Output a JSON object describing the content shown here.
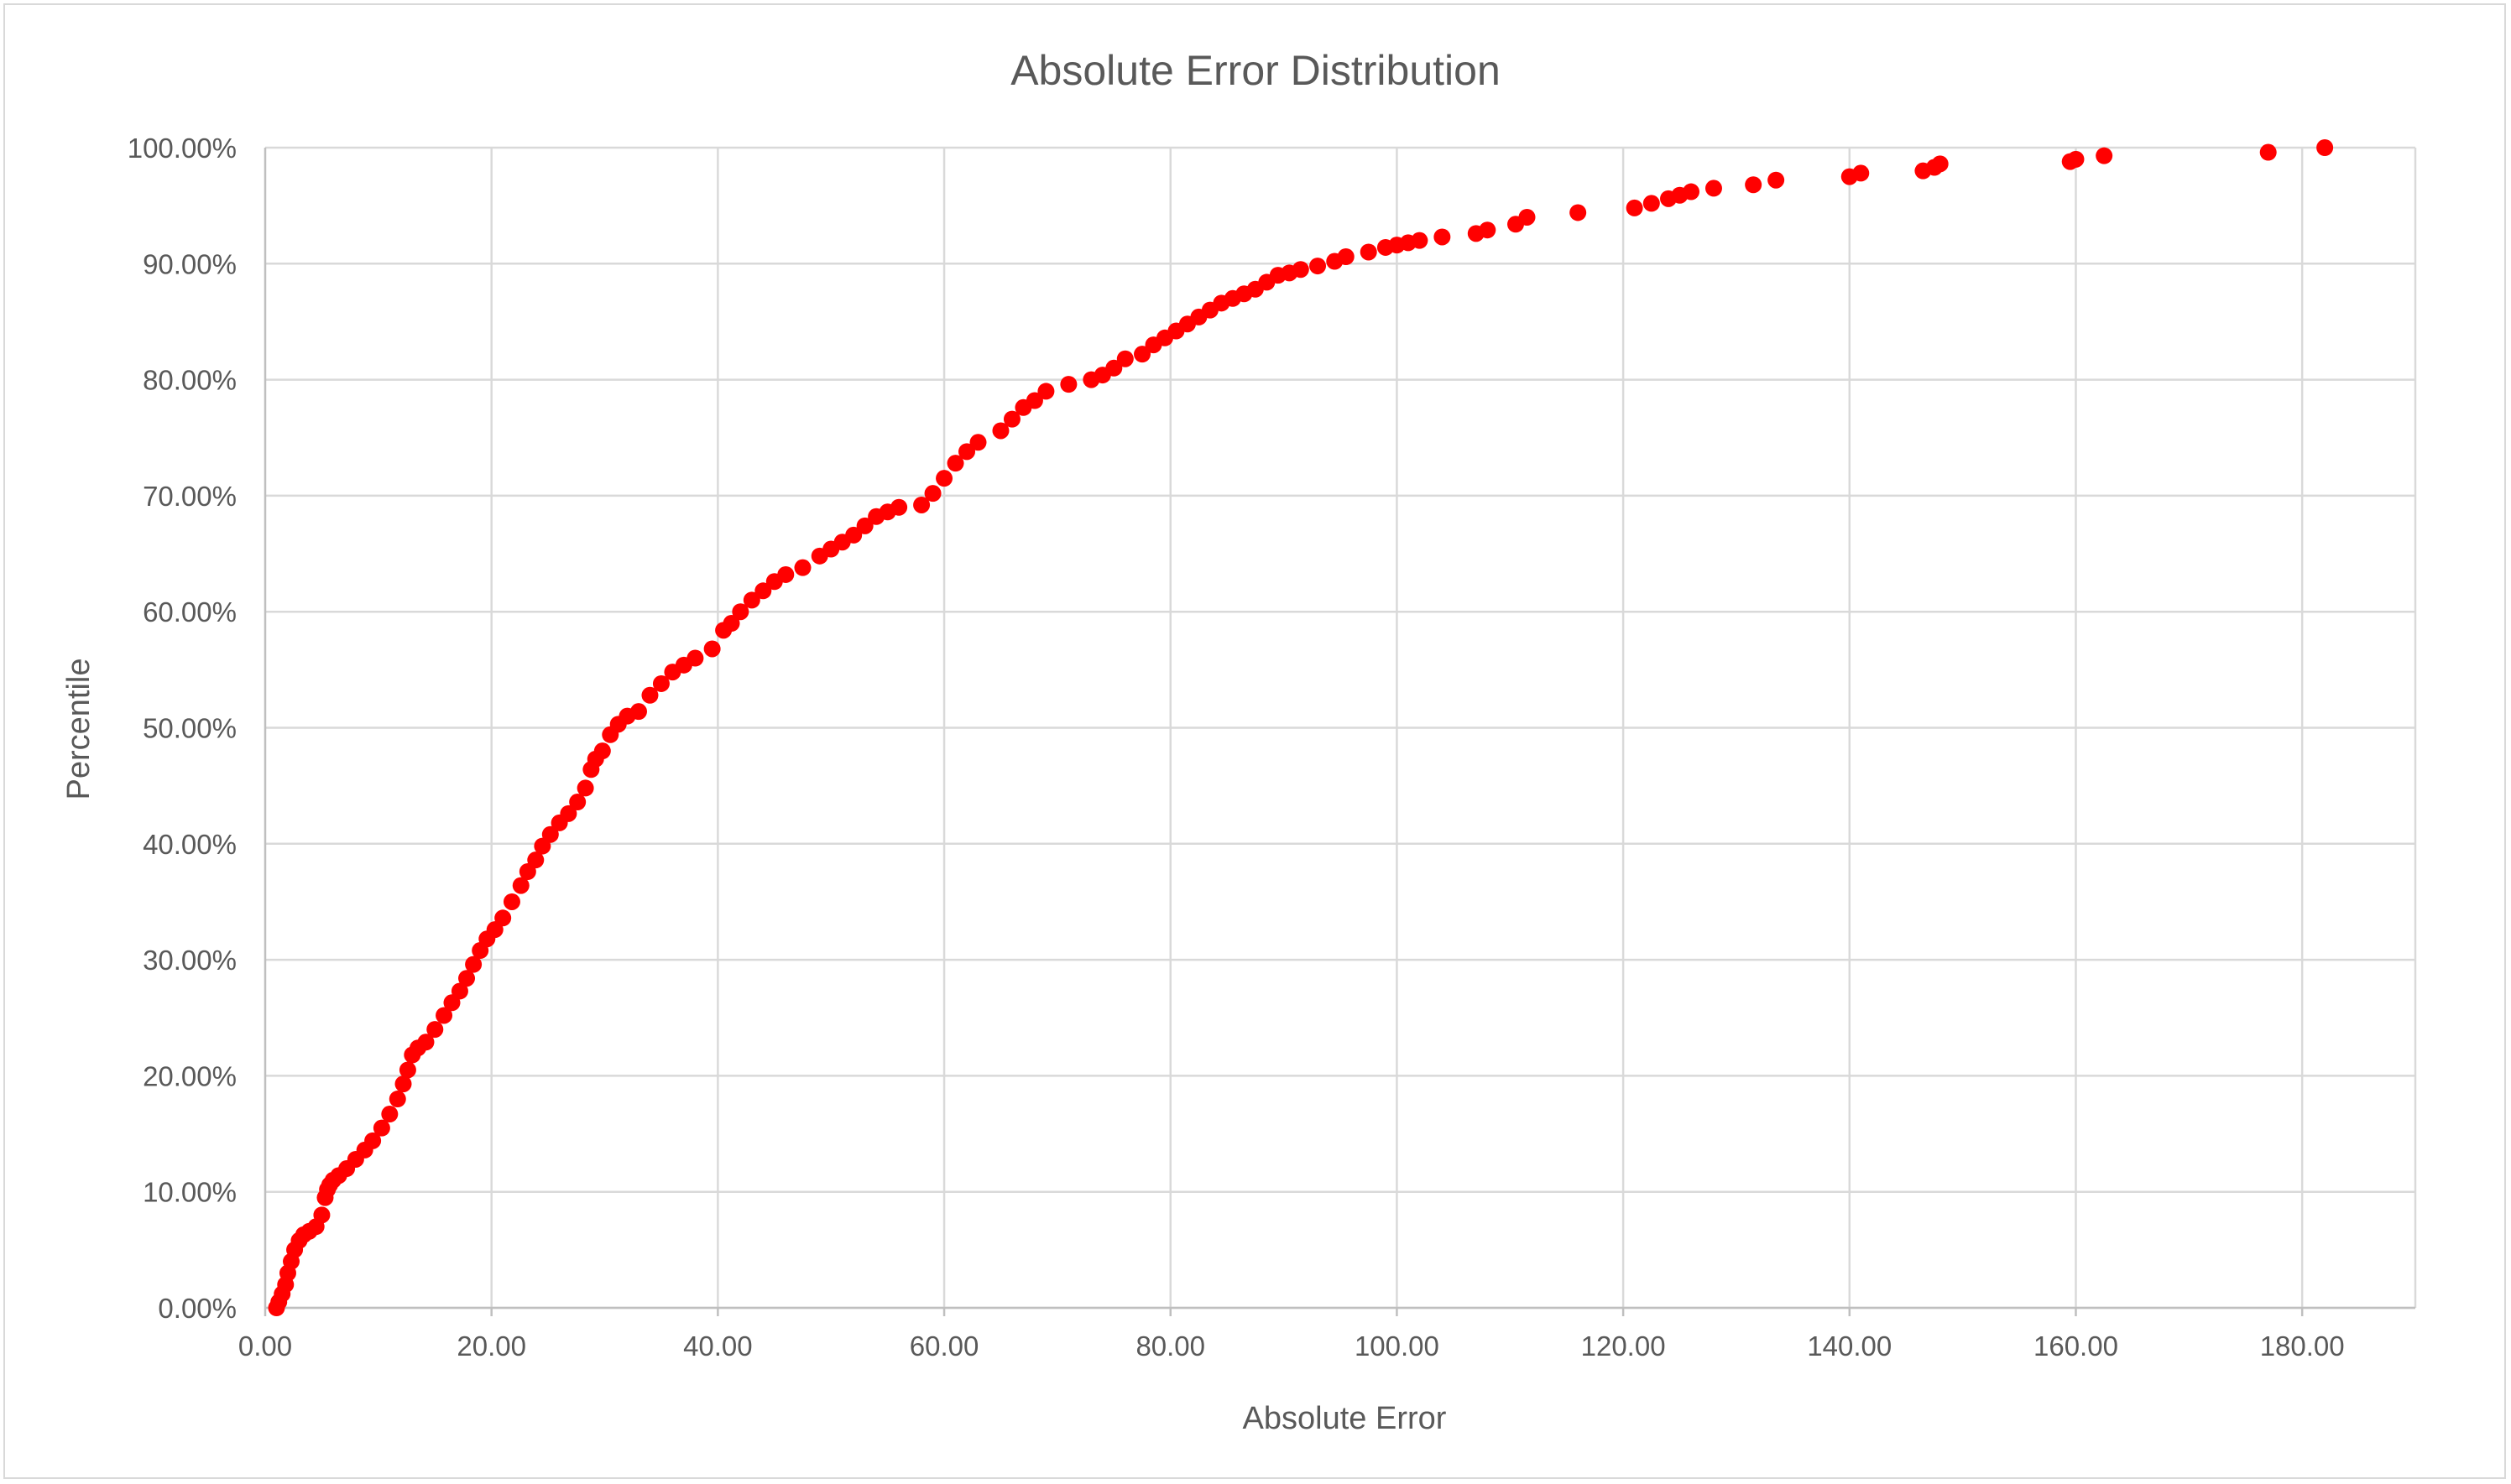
{
  "chart_data": {
    "type": "scatter",
    "title": "Absolute Error Distribution",
    "xlabel": "Absolute Error",
    "ylabel": "Percentile",
    "xlim": [
      0,
      190
    ],
    "ylim": [
      0,
      100
    ],
    "x_ticks": [
      0,
      20,
      40,
      60,
      80,
      100,
      120,
      140,
      160,
      180
    ],
    "x_tick_labels": [
      "0.00",
      "20.00",
      "40.00",
      "60.00",
      "80.00",
      "100.00",
      "120.00",
      "140.00",
      "160.00",
      "180.00"
    ],
    "y_ticks": [
      0,
      10,
      20,
      30,
      40,
      50,
      60,
      70,
      80,
      90,
      100
    ],
    "y_tick_labels": [
      "0.00%",
      "10.00%",
      "20.00%",
      "30.00%",
      "40.00%",
      "50.00%",
      "60.00%",
      "70.00%",
      "80.00%",
      "90.00%",
      "100.00%"
    ],
    "grid": true,
    "legend": "none",
    "marker_color": "#ff0000",
    "series": [
      {
        "x": [
          1.0,
          1.2,
          1.5,
          1.8,
          2.0,
          2.3,
          2.6,
          3.0,
          3.4,
          3.9,
          4.5,
          5.0,
          5.3,
          5.5,
          5.7,
          6.0,
          6.5,
          7.2,
          8.0,
          8.8,
          9.5,
          10.3,
          11.0,
          11.7,
          12.2,
          12.6,
          13.0,
          13.5,
          14.2,
          15.0,
          15.8,
          16.5,
          17.2,
          17.8,
          18.4,
          19.0,
          19.6,
          20.3,
          21.0,
          21.8,
          22.6,
          23.2,
          23.9,
          24.5,
          25.2,
          26.0,
          26.8,
          27.6,
          28.3,
          28.8,
          29.2,
          29.8,
          30.5,
          31.2,
          32.0,
          33.0,
          34.0,
          35.0,
          36.0,
          37.0,
          38.0,
          39.5,
          40.5,
          41.2,
          42.0,
          43.0,
          44.0,
          45.0,
          46.0,
          47.5,
          49.0,
          50.0,
          51.0,
          52.0,
          53.0,
          54.0,
          55.0,
          56.0,
          58.0,
          59.0,
          60.0,
          61.0,
          62.0,
          63.0,
          65.0,
          66.0,
          67.0,
          68.0,
          69.0,
          71.0,
          73.0,
          74.0,
          75.0,
          76.0,
          77.5,
          78.5,
          79.5,
          80.5,
          81.5,
          82.5,
          83.5,
          84.5,
          85.5,
          86.5,
          87.5,
          88.5,
          89.5,
          90.5,
          91.5,
          93.0,
          94.5,
          95.5,
          97.5,
          99.0,
          100.0,
          101.0,
          102.0,
          104.0,
          107.0,
          108.0,
          110.5,
          111.5,
          116.0,
          121.0,
          122.5,
          124.0,
          125.0,
          126.0,
          128.0,
          131.5,
          133.5,
          140.0,
          141.0,
          146.5,
          147.5,
          148.0,
          159.5,
          160.0,
          162.5,
          177.0,
          182.0
        ],
        "y": [
          0.0,
          0.5,
          1.2,
          2.0,
          3.0,
          4.0,
          5.0,
          5.8,
          6.3,
          6.6,
          7.0,
          8.0,
          9.5,
          10.2,
          10.6,
          11.0,
          11.4,
          12.0,
          12.8,
          13.6,
          14.4,
          15.5,
          16.7,
          18.0,
          19.3,
          20.5,
          21.8,
          22.4,
          22.9,
          24.0,
          25.2,
          26.3,
          27.3,
          28.4,
          29.6,
          30.8,
          31.8,
          32.6,
          33.6,
          35.0,
          36.4,
          37.6,
          38.6,
          39.8,
          40.8,
          41.8,
          42.6,
          43.6,
          44.8,
          46.4,
          47.3,
          48.0,
          49.4,
          50.3,
          51.0,
          51.4,
          52.8,
          53.8,
          54.8,
          55.4,
          56.0,
          56.8,
          58.4,
          59.0,
          60.0,
          61.0,
          61.8,
          62.6,
          63.2,
          63.8,
          64.8,
          65.4,
          66.0,
          66.6,
          67.4,
          68.2,
          68.6,
          69.0,
          69.2,
          70.2,
          71.5,
          72.8,
          73.8,
          74.6,
          75.6,
          76.6,
          77.6,
          78.2,
          79.0,
          79.6,
          80.0,
          80.4,
          81.0,
          81.8,
          82.2,
          83.0,
          83.6,
          84.2,
          84.8,
          85.4,
          86.0,
          86.6,
          87.0,
          87.4,
          87.8,
          88.4,
          89.0,
          89.2,
          89.5,
          89.8,
          90.2,
          90.6,
          91.0,
          91.4,
          91.6,
          91.8,
          92.0,
          92.3,
          92.6,
          92.9,
          93.4,
          94.0,
          94.4,
          94.8,
          95.2,
          95.6,
          95.9,
          96.2,
          96.5,
          96.8,
          97.2,
          97.5,
          97.8,
          98.0,
          98.3,
          98.6,
          98.8,
          99.0,
          99.3,
          99.6,
          100.0
        ]
      }
    ]
  }
}
